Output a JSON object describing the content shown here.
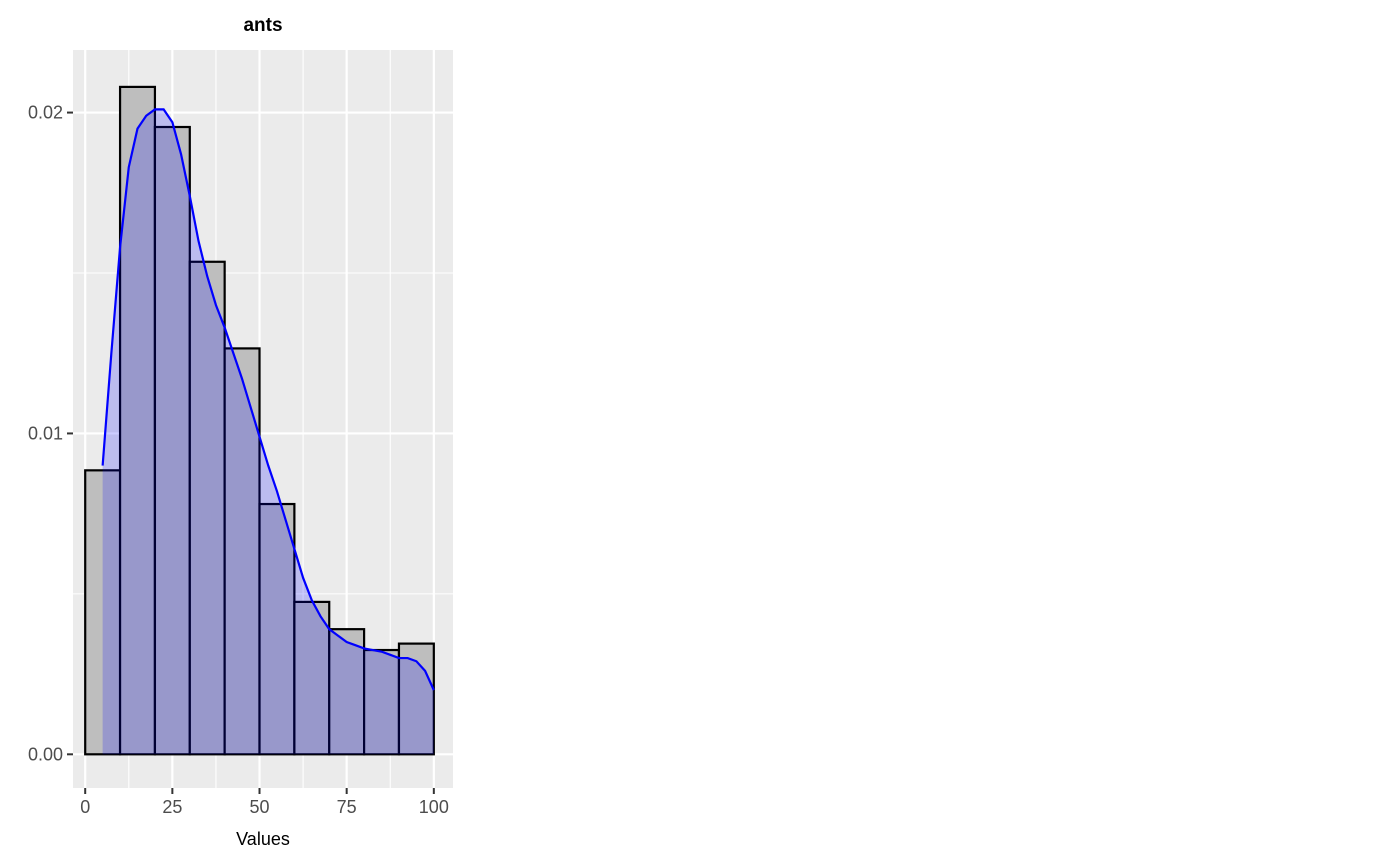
{
  "chart_data": {
    "type": "bar",
    "title": "ants",
    "xlabel": "Values",
    "ylabel": "",
    "xlim": [
      -3.5,
      105.5
    ],
    "ylim": [
      -0.00105,
      0.02195
    ],
    "x_ticks": [
      0,
      25,
      50,
      75,
      100
    ],
    "x_tick_labels": [
      "0",
      "25",
      "50",
      "75",
      "100"
    ],
    "y_ticks": [
      0.0,
      0.01,
      0.02
    ],
    "y_tick_labels": [
      "0.00",
      "0.01",
      "0.02"
    ],
    "grid": true,
    "legend": "none",
    "histogram": {
      "bin_edges": [
        0,
        10,
        20,
        30,
        40,
        50,
        60,
        70,
        80,
        90,
        100
      ],
      "density": [
        0.00885,
        0.0208,
        0.01955,
        0.01535,
        0.01265,
        0.0078,
        0.00475,
        0.0039,
        0.00325,
        0.00345
      ],
      "fill_color": "#bebebe",
      "stroke_color": "#000000"
    },
    "density_curve": {
      "x": [
        5,
        7.5,
        10,
        12.5,
        15,
        17.5,
        20,
        22.5,
        25,
        27.5,
        30,
        32.5,
        35,
        37.5,
        40,
        42.5,
        45,
        47.5,
        50,
        52.5,
        55,
        57.5,
        60,
        62.5,
        65,
        67.5,
        70,
        72.5,
        75,
        77.5,
        80,
        82.5,
        85,
        87.5,
        90,
        92.5,
        95,
        97.5,
        100
      ],
      "y": [
        0.009,
        0.0125,
        0.0158,
        0.0183,
        0.0195,
        0.0199,
        0.0201,
        0.0201,
        0.0197,
        0.0187,
        0.0174,
        0.016,
        0.0149,
        0.014,
        0.0133,
        0.0125,
        0.0117,
        0.0108,
        0.0099,
        0.009,
        0.0082,
        0.0073,
        0.0064,
        0.0055,
        0.0048,
        0.0043,
        0.0039,
        0.0037,
        0.0035,
        0.0034,
        0.0033,
        0.00325,
        0.0032,
        0.0031,
        0.003,
        0.003,
        0.0029,
        0.0026,
        0.002
      ],
      "line_color": "#0000ff",
      "fill_color": "#0000ff",
      "fill_opacity": 0.2
    }
  }
}
